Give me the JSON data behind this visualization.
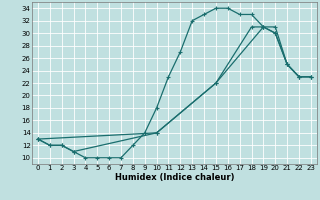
{
  "xlabel": "Humidex (Indice chaleur)",
  "bg_color": "#c0e0e0",
  "grid_color": "#ffffff",
  "line_color": "#1a6e6e",
  "xlim": [
    -0.5,
    23.5
  ],
  "ylim": [
    9,
    35
  ],
  "xticks": [
    0,
    1,
    2,
    3,
    4,
    5,
    6,
    7,
    8,
    9,
    10,
    11,
    12,
    13,
    14,
    15,
    16,
    17,
    18,
    19,
    20,
    21,
    22,
    23
  ],
  "yticks": [
    10,
    12,
    14,
    16,
    18,
    20,
    22,
    24,
    26,
    28,
    30,
    32,
    34
  ],
  "curve1_x": [
    0,
    1,
    2,
    3,
    4,
    5,
    6,
    7,
    8,
    9,
    10,
    11,
    12,
    13,
    14,
    15,
    16,
    17,
    18,
    19,
    20,
    21,
    22,
    23
  ],
  "curve1_y": [
    13,
    12,
    12,
    11,
    10,
    10,
    10,
    10,
    12,
    14,
    18,
    23,
    27,
    32,
    33,
    34,
    34,
    33,
    33,
    31,
    30,
    25,
    23,
    23
  ],
  "curve2_x": [
    0,
    1,
    2,
    3,
    10,
    15,
    18,
    19,
    20,
    21,
    22,
    23
  ],
  "curve2_y": [
    13,
    12,
    12,
    11,
    14,
    22,
    31,
    31,
    31,
    25,
    23,
    23
  ],
  "curve3_x": [
    0,
    10,
    15,
    19,
    20,
    21,
    22,
    23
  ],
  "curve3_y": [
    13,
    14,
    22,
    31,
    30,
    25,
    23,
    23
  ]
}
